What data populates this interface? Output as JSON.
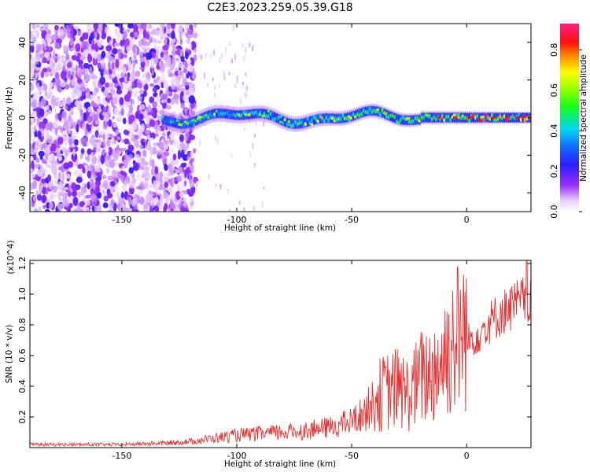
{
  "title": "C2E3.2023.259.05.39.G18",
  "chart_data": [
    {
      "type": "heatmap",
      "xlabel": "Height of straight line (km)",
      "ylabel": "Frequency (Hz)",
      "xlim": [
        -190,
        28
      ],
      "ylim": [
        -50,
        50
      ],
      "xticks": [
        -150,
        -100,
        -50,
        0
      ],
      "yticks": [
        -40,
        -20,
        0,
        20,
        40
      ],
      "colorbar": {
        "label": "Normalized spectral amplitude",
        "range": [
          0.0,
          0.93
        ],
        "ticks": [
          "0.0",
          "0.2",
          "0.4",
          "0.6",
          "0.8"
        ],
        "colormap": "rainbow (white-violet-blue-cyan-green-yellow-orange-red-magenta)"
      },
      "features": {
        "noise_region_x": [
          -190,
          -118
        ],
        "noise_amplitude_range": [
          0.0,
          0.25
        ],
        "signal_band_x": [
          -132,
          28
        ],
        "signal_band_center_hz": 0,
        "signal_band_halfwidth_hz": 5,
        "signal_peak_amplitude": 0.9,
        "signal_trend": "amplitude increases toward higher x; strongest (red) near x = -15 to 25"
      },
      "grid": false
    },
    {
      "type": "line",
      "xlabel": "Height of straight line (km)",
      "ylabel": "SNR (10 * v/v)",
      "y_multiplier": "(x10^4)",
      "xlim": [
        -190,
        28
      ],
      "ylim": [
        0,
        1.22
      ],
      "xticks": [
        -150,
        -100,
        -50,
        0
      ],
      "yticks": [
        "0.2",
        "0.4",
        "0.6",
        "0.8",
        "1.0",
        "1.2"
      ],
      "line_color": "#e53030",
      "series": [
        {
          "x": [
            -190,
            -170,
            -150,
            -130,
            -120,
            -110,
            -100,
            -90,
            -80,
            -70,
            -60,
            -50,
            -45,
            -40,
            -35,
            -30,
            -25,
            -20,
            -15,
            -10,
            -5,
            0,
            5,
            10,
            15,
            20,
            28
          ],
          "y": [
            0.02,
            0.02,
            0.02,
            0.03,
            0.04,
            0.06,
            0.08,
            0.09,
            0.1,
            0.11,
            0.13,
            0.17,
            0.22,
            0.3,
            0.34,
            0.36,
            0.32,
            0.42,
            0.45,
            0.55,
            0.66,
            0.72,
            0.78,
            0.86,
            0.92,
            0.97,
            1.03
          ]
        }
      ],
      "grid": false
    }
  ]
}
